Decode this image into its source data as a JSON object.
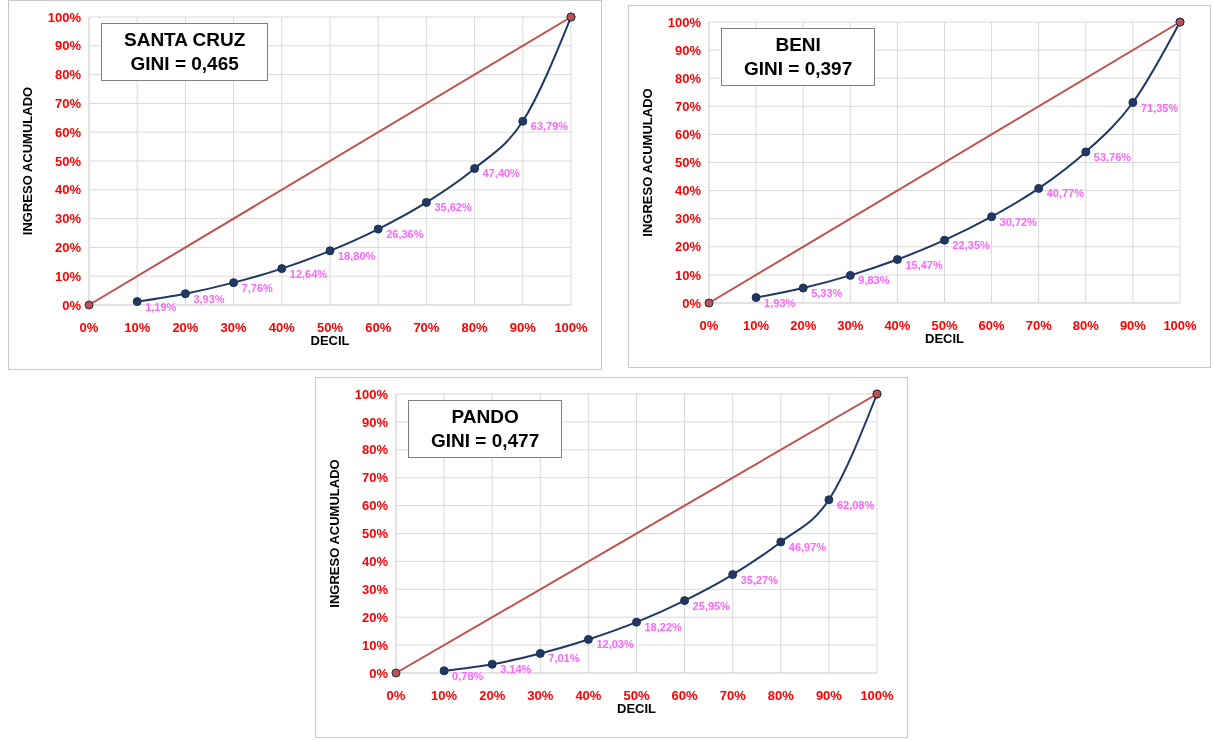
{
  "chart_data": [
    {
      "type": "line",
      "title": "SANTA CRUZ",
      "subtitle": "GINI = 0,465",
      "xlabel": "DECIL",
      "ylabel": "INGRESO ACUMULADO",
      "xlim": [
        0,
        100
      ],
      "ylim": [
        0,
        100
      ],
      "xticks": [
        {
          "value": 0,
          "label": "0%"
        },
        {
          "value": 10,
          "label": "10%"
        },
        {
          "value": 20,
          "label": "20%"
        },
        {
          "value": 30,
          "label": "30%"
        },
        {
          "value": 40,
          "label": "40%"
        },
        {
          "value": 50,
          "label": "50%"
        },
        {
          "value": 60,
          "label": "60%"
        },
        {
          "value": 70,
          "label": "70%"
        },
        {
          "value": 80,
          "label": "80%"
        },
        {
          "value": 90,
          "label": "90%"
        },
        {
          "value": 100,
          "label": "100%"
        }
      ],
      "yticks": [
        {
          "value": 0,
          "label": "0%"
        },
        {
          "value": 10,
          "label": "10%"
        },
        {
          "value": 20,
          "label": "20%"
        },
        {
          "value": 30,
          "label": "30%"
        },
        {
          "value": 40,
          "label": "40%"
        },
        {
          "value": 50,
          "label": "50%"
        },
        {
          "value": 60,
          "label": "60%"
        },
        {
          "value": 70,
          "label": "70%"
        },
        {
          "value": 80,
          "label": "80%"
        },
        {
          "value": 90,
          "label": "90%"
        },
        {
          "value": 100,
          "label": "100%"
        }
      ],
      "grid": true,
      "marker": "circle",
      "series": [
        {
          "color": "#1f3864",
          "x": [
            10,
            20,
            30,
            40,
            50,
            60,
            70,
            80,
            90,
            100
          ],
          "values": [
            1.19,
            3.93,
            7.76,
            12.64,
            18.8,
            26.36,
            35.62,
            47.4,
            63.79,
            100
          ],
          "value_labels": [
            "1,19%",
            "3,93%",
            "7,76%",
            "12,64%",
            "18,80%",
            "26,36%",
            "35,62%",
            "47,40%",
            "63,79%",
            null
          ]
        },
        {
          "color": "#c0504d",
          "x": [
            0,
            100
          ],
          "values": [
            0,
            100
          ]
        }
      ]
    },
    {
      "type": "line",
      "title": "BENI",
      "subtitle": "GINI = 0,397",
      "xlabel": "DECIL",
      "ylabel": "INGRESO ACUMULADO",
      "xlim": [
        0,
        100
      ],
      "ylim": [
        0,
        100
      ],
      "xticks": [
        {
          "value": 0,
          "label": "0%"
        },
        {
          "value": 10,
          "label": "10%"
        },
        {
          "value": 20,
          "label": "20%"
        },
        {
          "value": 30,
          "label": "30%"
        },
        {
          "value": 40,
          "label": "40%"
        },
        {
          "value": 50,
          "label": "50%"
        },
        {
          "value": 60,
          "label": "60%"
        },
        {
          "value": 70,
          "label": "70%"
        },
        {
          "value": 80,
          "label": "80%"
        },
        {
          "value": 90,
          "label": "90%"
        },
        {
          "value": 100,
          "label": "100%"
        }
      ],
      "yticks": [
        {
          "value": 0,
          "label": "0%"
        },
        {
          "value": 10,
          "label": "10%"
        },
        {
          "value": 20,
          "label": "20%"
        },
        {
          "value": 30,
          "label": "30%"
        },
        {
          "value": 40,
          "label": "40%"
        },
        {
          "value": 50,
          "label": "50%"
        },
        {
          "value": 60,
          "label": "60%"
        },
        {
          "value": 70,
          "label": "70%"
        },
        {
          "value": 80,
          "label": "80%"
        },
        {
          "value": 90,
          "label": "90%"
        },
        {
          "value": 100,
          "label": "100%"
        }
      ],
      "grid": true,
      "marker": "circle",
      "series": [
        {
          "color": "#1f3864",
          "x": [
            10,
            20,
            30,
            40,
            50,
            60,
            70,
            80,
            90,
            100
          ],
          "values": [
            1.93,
            5.33,
            9.83,
            15.47,
            22.35,
            30.72,
            40.77,
            53.76,
            71.35,
            100
          ],
          "value_labels": [
            "1,93%",
            "5,33%",
            "9,83%",
            "15,47%",
            "22,35%",
            "30,72%",
            "40,77%",
            "53,76%",
            "71,35%",
            null
          ]
        },
        {
          "color": "#c0504d",
          "x": [
            0,
            100
          ],
          "values": [
            0,
            100
          ]
        }
      ]
    },
    {
      "type": "line",
      "title": "PANDO",
      "subtitle": "GINI = 0,477",
      "xlabel": "DECIL",
      "ylabel": "INGRESO ACUMULADO",
      "xlim": [
        0,
        100
      ],
      "ylim": [
        0,
        100
      ],
      "xticks": [
        {
          "value": 0,
          "label": "0%"
        },
        {
          "value": 10,
          "label": "10%"
        },
        {
          "value": 20,
          "label": "20%"
        },
        {
          "value": 30,
          "label": "30%"
        },
        {
          "value": 40,
          "label": "40%"
        },
        {
          "value": 50,
          "label": "50%"
        },
        {
          "value": 60,
          "label": "60%"
        },
        {
          "value": 70,
          "label": "70%"
        },
        {
          "value": 80,
          "label": "80%"
        },
        {
          "value": 90,
          "label": "90%"
        },
        {
          "value": 100,
          "label": "100%"
        }
      ],
      "yticks": [
        {
          "value": 0,
          "label": "0%"
        },
        {
          "value": 10,
          "label": "10%"
        },
        {
          "value": 20,
          "label": "20%"
        },
        {
          "value": 30,
          "label": "30%"
        },
        {
          "value": 40,
          "label": "40%"
        },
        {
          "value": 50,
          "label": "50%"
        },
        {
          "value": 60,
          "label": "60%"
        },
        {
          "value": 70,
          "label": "70%"
        },
        {
          "value": 80,
          "label": "80%"
        },
        {
          "value": 90,
          "label": "90%"
        },
        {
          "value": 100,
          "label": "100%"
        }
      ],
      "grid": true,
      "marker": "circle",
      "series": [
        {
          "color": "#1f3864",
          "x": [
            10,
            20,
            30,
            40,
            50,
            60,
            70,
            80,
            90,
            100
          ],
          "values": [
            0.78,
            3.14,
            7.01,
            12.03,
            18.22,
            25.95,
            35.27,
            46.97,
            62.08,
            100
          ],
          "value_labels": [
            "0,78%",
            "3,14%",
            "7,01%",
            "12,03%",
            "18,22%",
            "25,95%",
            "35,27%",
            "46,97%",
            "62,08%",
            null
          ]
        },
        {
          "color": "#c0504d",
          "x": [
            0,
            100
          ],
          "values": [
            0,
            100
          ]
        }
      ]
    }
  ]
}
